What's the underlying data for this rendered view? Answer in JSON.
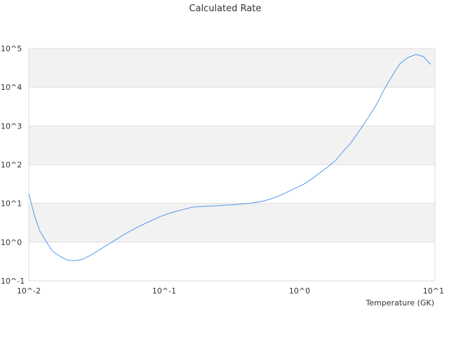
{
  "chart_data": {
    "type": "line",
    "title": "Calculated Rate",
    "xlabel": "Temperature (GK)",
    "ylabel": "",
    "x_scale": "log",
    "y_scale": "log",
    "xlim": [
      0.01,
      10
    ],
    "ylim": [
      0.1,
      100000
    ],
    "x_ticks": [
      {
        "base": "10^",
        "exp": "-2"
      },
      {
        "base": "10^",
        "exp": "-1"
      },
      {
        "base": "10^",
        "exp": "0"
      },
      {
        "base": "10^",
        "exp": "1"
      }
    ],
    "y_ticks": [
      {
        "base": "10^",
        "exp": "-1"
      },
      {
        "base": "10^",
        "exp": "0"
      },
      {
        "base": "10^",
        "exp": "1"
      },
      {
        "base": "10^",
        "exp": "2"
      },
      {
        "base": "10^",
        "exp": "3"
      },
      {
        "base": "10^",
        "exp": "4"
      },
      {
        "base": "10^",
        "exp": "5"
      }
    ],
    "grid": "alternating horizontal bands",
    "legend": "none",
    "series": [
      {
        "color": "#5599ee",
        "x": [
          0.01,
          0.011,
          0.012,
          0.0135,
          0.015,
          0.017,
          0.019,
          0.021,
          0.023,
          0.025,
          0.028,
          0.032,
          0.037,
          0.042,
          0.048,
          0.055,
          0.063,
          0.072,
          0.082,
          0.094,
          0.107,
          0.122,
          0.14,
          0.16,
          0.185,
          0.21,
          0.24,
          0.28,
          0.32,
          0.37,
          0.42,
          0.48,
          0.55,
          0.63,
          0.72,
          0.82,
          0.94,
          1.07,
          1.22,
          1.4,
          1.6,
          1.85,
          2.1,
          2.4,
          2.8,
          3.2,
          3.7,
          4.2,
          4.8,
          5.5,
          6.3,
          7.2,
          8.2,
          9.3
        ],
        "y": [
          18,
          5,
          2,
          1,
          0.58,
          0.43,
          0.35,
          0.33,
          0.34,
          0.36,
          0.44,
          0.58,
          0.8,
          1.05,
          1.4,
          1.85,
          2.4,
          3,
          3.7,
          4.6,
          5.4,
          6.2,
          7,
          7.9,
          8.3,
          8.4,
          8.6,
          9,
          9.2,
          9.6,
          10,
          10.6,
          11.6,
          13.5,
          16,
          20,
          25,
          31,
          42,
          60,
          85,
          130,
          220,
          370,
          800,
          1600,
          3600,
          8500,
          19000,
          40000,
          58000,
          70000,
          62000,
          39000
        ]
      }
    ]
  }
}
